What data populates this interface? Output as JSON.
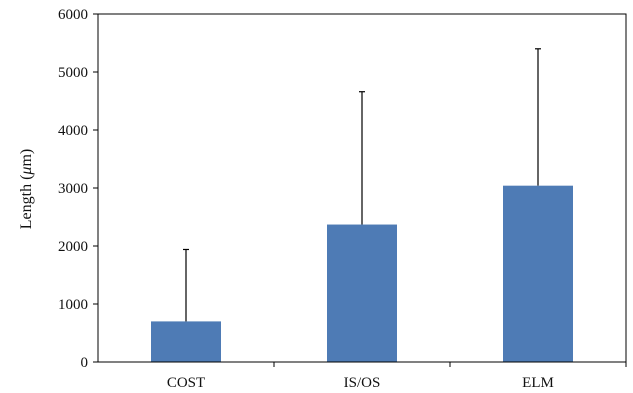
{
  "chart_data": {
    "type": "bar",
    "categories": [
      "COST",
      "IS/OS",
      "ELM"
    ],
    "values": [
      700,
      2370,
      3040
    ],
    "error_upper": [
      1940,
      4660,
      5400
    ],
    "ylabel_main": "Length (",
    "ylabel_mu": "μ",
    "ylabel_unit": "m)",
    "ylim": [
      0,
      6000
    ],
    "yticks": [
      0,
      1000,
      2000,
      3000,
      4000,
      5000,
      6000
    ],
    "grid": false,
    "bar_color": "#4E7BB5",
    "error_color": "#000000"
  }
}
